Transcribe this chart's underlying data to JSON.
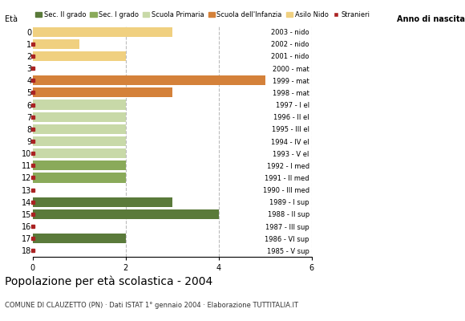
{
  "ages": [
    18,
    17,
    16,
    15,
    14,
    13,
    12,
    11,
    10,
    9,
    8,
    7,
    6,
    5,
    4,
    3,
    2,
    1,
    0
  ],
  "anno": [
    "1985 - V sup",
    "1986 - VI sup",
    "1987 - III sup",
    "1988 - II sup",
    "1989 - I sup",
    "1990 - III med",
    "1991 - II med",
    "1992 - I med",
    "1993 - V el",
    "1994 - IV el",
    "1995 - III el",
    "1996 - II el",
    "1997 - I el",
    "1998 - mat",
    "1999 - mat",
    "2000 - mat",
    "2001 - nido",
    "2002 - nido",
    "2003 - nido"
  ],
  "bar_values": [
    0,
    2,
    0,
    4,
    3,
    0,
    2,
    2,
    2,
    2,
    2,
    2,
    2,
    3,
    5,
    0,
    2,
    1,
    3
  ],
  "bar_colors": [
    "#5a7a3a",
    "#5a7a3a",
    "#5a7a3a",
    "#5a7a3a",
    "#5a7a3a",
    "#8aaa5a",
    "#8aaa5a",
    "#8aaa5a",
    "#c8d9a8",
    "#c8d9a8",
    "#c8d9a8",
    "#c8d9a8",
    "#c8d9a8",
    "#d4813a",
    "#d4813a",
    "#d4813a",
    "#f0d080",
    "#f0d080",
    "#f0d080"
  ],
  "stranieri_show": [
    1,
    1,
    1,
    1,
    1,
    1,
    1,
    1,
    1,
    1,
    1,
    1,
    1,
    1,
    1,
    1,
    1,
    1,
    0
  ],
  "legend_labels": [
    "Sec. II grado",
    "Sec. I grado",
    "Scuola Primaria",
    "Scuola dell'Infanzia",
    "Asilo Nido",
    "Stranieri"
  ],
  "legend_colors": [
    "#5a7a3a",
    "#8aaa5a",
    "#c8d9a8",
    "#d4813a",
    "#f0d080",
    "#aa2222"
  ],
  "title": "Popolazione per età scolastica - 2004",
  "subtitle": "COMUNE DI CLAUZETTO (PN) · Dati ISTAT 1° gennaio 2004 · Elaborazione TUTTITALIA.IT",
  "ylabel_left": "Età",
  "ylabel_right": "Anno di nascita",
  "xlim": [
    0,
    6
  ],
  "xticks": [
    0,
    2,
    4,
    6
  ],
  "background_color": "#ffffff",
  "grid_color": "#bbbbbb"
}
